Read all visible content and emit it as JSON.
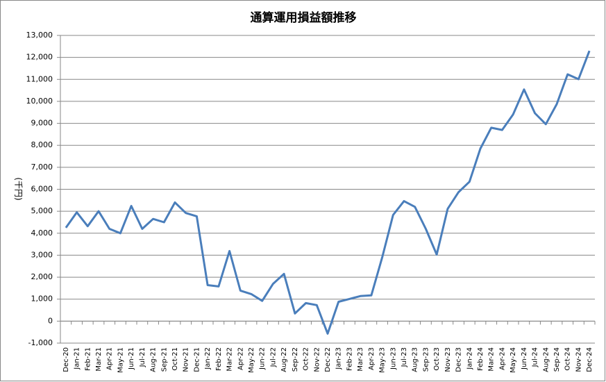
{
  "chart_data": {
    "type": "line",
    "title": "通算運用損益額推移",
    "y_label": "(千円)",
    "categories": [
      "Dec-20",
      "Jan-21",
      "Feb-21",
      "Mar-21",
      "Apr-21",
      "May-21",
      "Jun-21",
      "Jul-21",
      "Aug-21",
      "Sep-21",
      "Oct-21",
      "Nov-21",
      "Dec-21",
      "Jan-22",
      "Feb-22",
      "Mar-22",
      "Apr-22",
      "May-22",
      "Jun-22",
      "Jul-22",
      "Aug-22",
      "Sep-22",
      "Oct-22",
      "Nov-22",
      "Dec-22",
      "Jan-23",
      "Feb-23",
      "Mar-23",
      "Apr-23",
      "May-23",
      "Jun-23",
      "Jul-23",
      "Aug-23",
      "Sep-23",
      "Oct-23",
      "Nov-23",
      "Dec-23",
      "Jan-24",
      "Feb-24",
      "Mar-24",
      "Apr-24",
      "May-24",
      "Jun-24",
      "Jul-24",
      "Aug-24",
      "Sep-24",
      "Oct-24",
      "Nov-24",
      "Dec-24"
    ],
    "values": [
      4250,
      4950,
      4320,
      5000,
      4200,
      4000,
      5240,
      4200,
      4650,
      4500,
      5400,
      4920,
      4770,
      1640,
      1580,
      3190,
      1390,
      1230,
      920,
      1700,
      2150,
      350,
      820,
      730,
      -570,
      880,
      1010,
      1140,
      1170,
      2900,
      4830,
      5460,
      5200,
      4200,
      3030,
      5110,
      5870,
      6340,
      7850,
      8800,
      8700,
      9400,
      10540,
      9460,
      8960,
      9870,
      11230,
      11010,
      12300
    ],
    "color": "#4a7ebb",
    "ylim": [
      -1000,
      13000
    ],
    "yticks": [
      {
        "value": -1000,
        "label": "-1,000"
      },
      0,
      {
        "value": 1000,
        "label": "1,000"
      },
      {
        "value": 2000,
        "label": "2,000"
      },
      {
        "value": 3000,
        "label": "3,000"
      },
      {
        "value": 4000,
        "label": "4,000"
      },
      {
        "value": 5000,
        "label": "5,000"
      },
      {
        "value": 6000,
        "label": "6,000"
      },
      {
        "value": 7000,
        "label": "7,000"
      },
      {
        "value": 8000,
        "label": "8,000"
      },
      {
        "value": 9000,
        "label": "9,000"
      },
      {
        "value": 10000,
        "label": "10,000"
      },
      {
        "value": 11000,
        "label": "11,000"
      },
      {
        "value": 12000,
        "label": "12,000"
      },
      {
        "value": 13000,
        "label": "13,000"
      }
    ],
    "grid": true
  }
}
